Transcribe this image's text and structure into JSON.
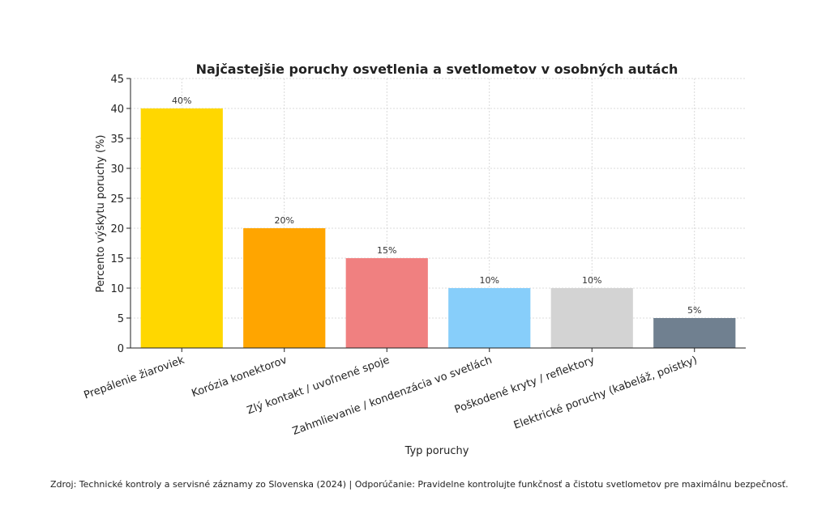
{
  "chart_data": {
    "type": "bar",
    "title": "Najčastejšie poruchy osvetlenia a svetlometov v osobných autách",
    "xlabel": "Typ poruchy",
    "ylabel": "Percento výskytu poruchy (%)",
    "ylim": [
      0,
      45
    ],
    "yticks": [
      0,
      5,
      10,
      15,
      20,
      25,
      30,
      35,
      40,
      45
    ],
    "grid": true,
    "categories": [
      "Prepálenie žiaroviek",
      "Korózia konektorov",
      "Zlý kontakt / uvoľnené spoje",
      "Zahmlievanie / kondenzácia vo svetlách",
      "Poškodené kryty / reflektory",
      "Elektrické poruchy (kabeláž, poistky)"
    ],
    "values": [
      40,
      20,
      15,
      10,
      10,
      5
    ],
    "data_labels": [
      "40%",
      "20%",
      "15%",
      "10%",
      "10%",
      "5%"
    ],
    "colors": [
      "#FFD700",
      "#FFA500",
      "#F08080",
      "#87CEFA",
      "#D3D3D3",
      "#708090"
    ]
  },
  "footer": {
    "note": "Zdroj: Technické kontroly a servisné záznamy zo Slovenska (2024) | Odporúčanie: Pravidelne kontrolujte funkčnosť a čistotu svetlometov pre maximálnu bezpečnosť."
  }
}
